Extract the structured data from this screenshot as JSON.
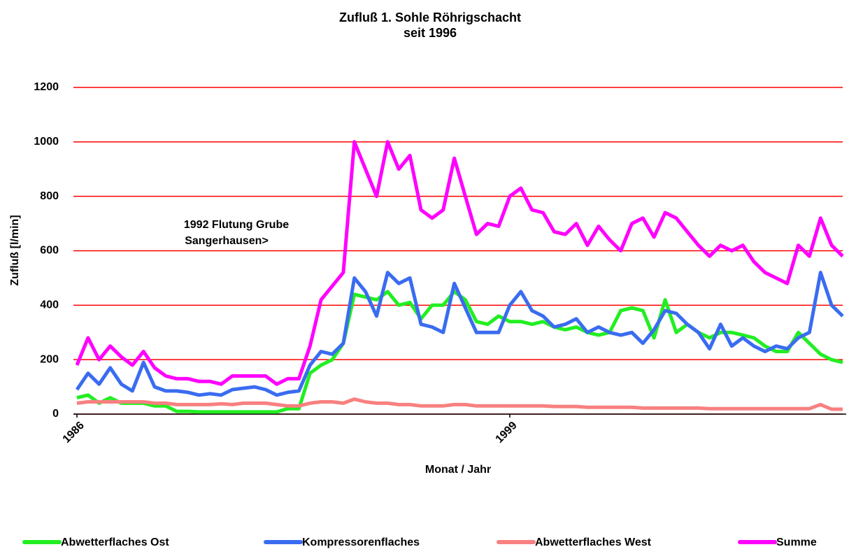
{
  "chart_data": {
    "type": "line",
    "title": "Zufluß 1. Sohle Röhrigschacht",
    "subtitle": "seit 1996",
    "x_label": "Monat / Jahr",
    "y_label": "Zufluß [l/min]",
    "annotation": [
      "1992 Flutung Grube",
      "Sangerhausen>"
    ],
    "categories": [
      "1986",
      null,
      null,
      null,
      null,
      null,
      null,
      null,
      null,
      null,
      null,
      null,
      null,
      null,
      null,
      null,
      null,
      null,
      null,
      null,
      null,
      null,
      null,
      null,
      null,
      null,
      null,
      null,
      null,
      null,
      null,
      null,
      null,
      null,
      null,
      null,
      null,
      null,
      null,
      "1999",
      null,
      null,
      null,
      null,
      null,
      null,
      null,
      null,
      null,
      null,
      null,
      null,
      null,
      null,
      null,
      null,
      null,
      null,
      null,
      null,
      null,
      null,
      null,
      null,
      null,
      null,
      null,
      null,
      null,
      null
    ],
    "ylim": [
      0,
      1200
    ],
    "yticks": [
      0,
      200,
      400,
      600,
      800,
      1000,
      1200
    ],
    "grid": true,
    "legend": "bottom",
    "series": [
      {
        "name": "Abwetterflaches Ost",
        "color": "#22ee22",
        "values": [
          60,
          70,
          40,
          60,
          40,
          40,
          40,
          30,
          30,
          10,
          10,
          8,
          8,
          8,
          8,
          8,
          8,
          8,
          8,
          20,
          20,
          150,
          180,
          200,
          260,
          440,
          430,
          420,
          450,
          400,
          410,
          350,
          400,
          400,
          450,
          420,
          340,
          330,
          360,
          340,
          340,
          330,
          340,
          320,
          310,
          320,
          300,
          290,
          300,
          380,
          390,
          380,
          280,
          420,
          300,
          330,
          300,
          280,
          300,
          300,
          290,
          280,
          250,
          230,
          230,
          300,
          260,
          220,
          200,
          190
        ]
      },
      {
        "name": "Kompressorenflaches",
        "color": "#3a6cf0",
        "values": [
          90,
          150,
          110,
          170,
          110,
          85,
          190,
          100,
          85,
          85,
          80,
          70,
          75,
          70,
          90,
          95,
          100,
          90,
          70,
          80,
          85,
          180,
          230,
          220,
          260,
          500,
          450,
          360,
          520,
          480,
          500,
          330,
          320,
          300,
          480,
          390,
          300,
          300,
          300,
          400,
          450,
          380,
          360,
          320,
          330,
          350,
          300,
          320,
          300,
          290,
          300,
          260,
          310,
          380,
          370,
          330,
          300,
          240,
          330,
          250,
          280,
          250,
          230,
          250,
          240,
          280,
          300,
          520,
          400,
          360
        ]
      },
      {
        "name": "Abwetterflaches West",
        "color": "#f88080",
        "values": [
          40,
          45,
          45,
          45,
          45,
          45,
          45,
          40,
          40,
          35,
          35,
          35,
          35,
          38,
          35,
          40,
          40,
          40,
          35,
          30,
          30,
          40,
          45,
          45,
          40,
          55,
          45,
          40,
          40,
          35,
          35,
          30,
          30,
          30,
          35,
          35,
          30,
          30,
          30,
          30,
          30,
          30,
          30,
          28,
          28,
          28,
          25,
          25,
          25,
          25,
          25,
          22,
          22,
          22,
          22,
          22,
          22,
          20,
          20,
          20,
          20,
          20,
          20,
          20,
          20,
          20,
          20,
          35,
          18,
          18
        ]
      },
      {
        "name": "Summe",
        "color": "#ff00ff",
        "values": [
          180,
          280,
          200,
          250,
          210,
          180,
          230,
          170,
          140,
          130,
          130,
          120,
          120,
          110,
          140,
          140,
          140,
          140,
          110,
          130,
          130,
          250,
          420,
          470,
          520,
          1000,
          900,
          800,
          1000,
          900,
          950,
          750,
          720,
          750,
          940,
          800,
          660,
          700,
          690,
          800,
          830,
          750,
          740,
          670,
          660,
          700,
          620,
          690,
          640,
          600,
          700,
          720,
          650,
          740,
          720,
          670,
          620,
          580,
          620,
          600,
          620,
          560,
          520,
          500,
          480,
          620,
          580,
          720,
          620,
          580
        ]
      }
    ]
  }
}
